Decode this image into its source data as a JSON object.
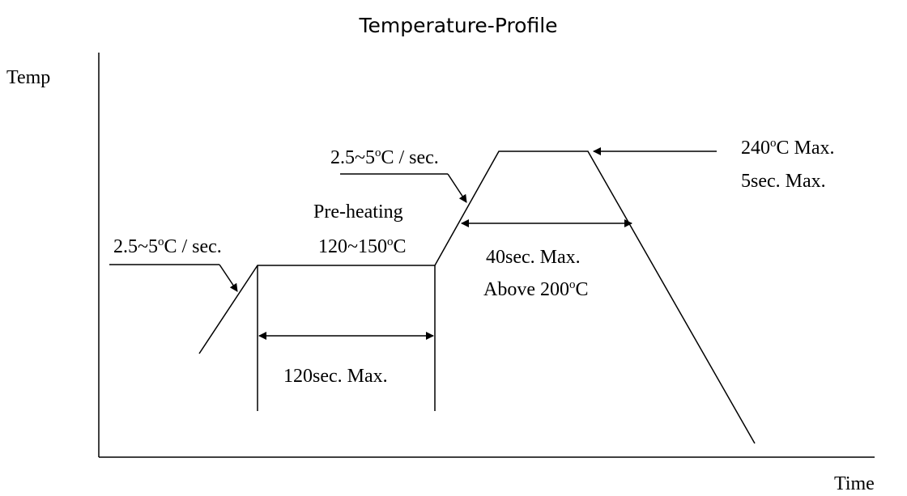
{
  "title": "Temperature-Profile",
  "axes": {
    "y_label": "Temp",
    "x_label": "Time"
  },
  "annotations": {
    "ramp_left": {
      "pre": "2.5~5",
      "sup": "o",
      "post": "C / sec."
    },
    "preheat_name": "Pre-heating",
    "preheat_temp": {
      "pre": "120~150",
      "sup": "o",
      "post": "C"
    },
    "preheat_time": "120sec. Max.",
    "ramp_upper": {
      "pre": "2.5~5",
      "sup": "o",
      "post": "C / sec."
    },
    "reflow_time": "40sec. Max.",
    "reflow_above": {
      "pre": "Above 200",
      "sup": "o",
      "post": "C"
    },
    "peak_temp": {
      "pre": "240",
      "sup": "o",
      "post": "C Max."
    },
    "peak_time": "5sec. Max."
  }
}
